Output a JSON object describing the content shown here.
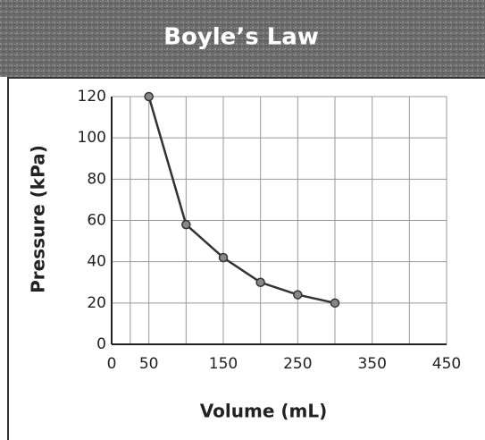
{
  "chart_data": {
    "type": "line",
    "title": "Boyle’s Law",
    "xlabel": "Volume (mL)",
    "ylabel": "Pressure (kPa)",
    "x": [
      50,
      100,
      150,
      200,
      250,
      300
    ],
    "series": [
      {
        "name": "Pressure",
        "color": "#333333",
        "values": [
          120,
          58,
          42,
          30,
          24,
          20
        ]
      }
    ],
    "xlim": [
      0,
      450
    ],
    "xticks": [
      0,
      50,
      150,
      250,
      350,
      450
    ],
    "ylim": [
      0,
      120
    ],
    "yticks": [
      0,
      20,
      40,
      60,
      80,
      100,
      120
    ],
    "grid": true
  }
}
